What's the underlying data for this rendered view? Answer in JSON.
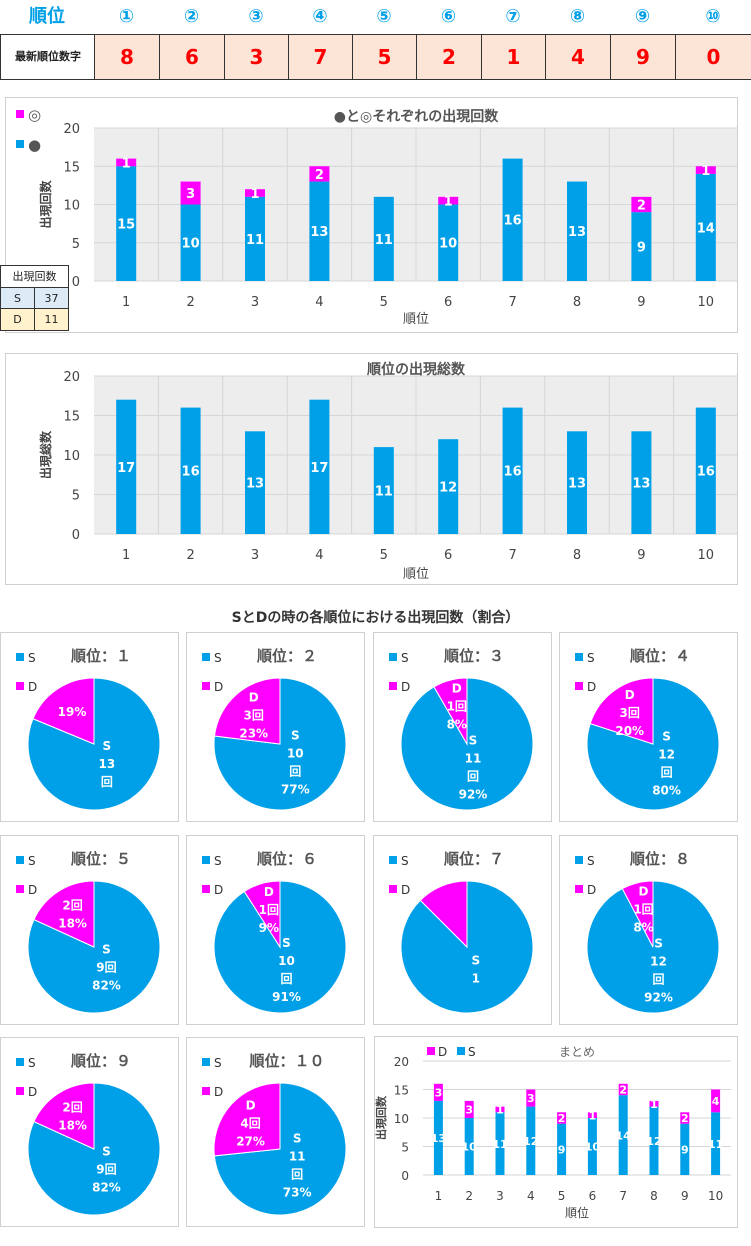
{
  "header": {
    "rank_label": "順位",
    "positions": [
      "①",
      "②",
      "③",
      "④",
      "⑤",
      "⑥",
      "⑦",
      "⑧",
      "⑨",
      "⑩"
    ]
  },
  "latest_row": {
    "label": "最新順位数字",
    "digits": [
      "8",
      "6",
      "3",
      "7",
      "5",
      "2",
      "1",
      "4",
      "9",
      "0"
    ]
  },
  "counts_table": {
    "title": "出現回数",
    "rows": [
      {
        "key": "S",
        "value": "37"
      },
      {
        "key": "D",
        "value": "11"
      }
    ]
  },
  "pie_section_title": "SとDの時の各順位における出現回数（割合）",
  "colors": {
    "S": "#00A0E8",
    "D": "#FF00FF",
    "accent": "#00A0E8",
    "red": "#FF0000"
  },
  "chart_data": [
    {
      "type": "bar",
      "title": "●と◎それぞれの出現回数",
      "xlabel": "順位",
      "ylabel": "出現回数",
      "ylim": [
        0,
        20
      ],
      "yticks": [
        "0",
        "5",
        "10",
        "15",
        "20"
      ],
      "categories": [
        "1",
        "2",
        "3",
        "4",
        "5",
        "6",
        "7",
        "8",
        "9",
        "10"
      ],
      "stacked": true,
      "legend": "top-left",
      "series": [
        {
          "name": "●",
          "color": "#00A0E8",
          "values": [
            15,
            10,
            11,
            13,
            11,
            10,
            16,
            13,
            9,
            14
          ]
        },
        {
          "name": "◎",
          "color": "#FF00FF",
          "values": [
            1,
            3,
            1,
            2,
            0,
            1,
            0,
            0,
            2,
            1
          ]
        }
      ]
    },
    {
      "type": "bar",
      "title": "順位の出現総数",
      "xlabel": "順位",
      "ylabel": "出現総数",
      "ylim": [
        0,
        20
      ],
      "yticks": [
        "0",
        "5",
        "10",
        "15",
        "20"
      ],
      "categories": [
        "1",
        "2",
        "3",
        "4",
        "5",
        "6",
        "7",
        "8",
        "9",
        "10"
      ],
      "series": [
        {
          "color": "#00A0E8",
          "values": [
            17,
            16,
            13,
            17,
            11,
            12,
            16,
            13,
            13,
            16
          ]
        }
      ]
    },
    {
      "type": "pie",
      "title": "順位：１",
      "legend": [
        "S",
        "D"
      ],
      "slices": [
        {
          "name": "S",
          "value": 13,
          "labels": [
            "S",
            "13",
            "回"
          ]
        },
        {
          "name": "D",
          "value": 3,
          "labels": [
            "19%"
          ]
        }
      ]
    },
    {
      "type": "pie",
      "title": "順位：２",
      "legend": [
        "S",
        "D"
      ],
      "slices": [
        {
          "name": "S",
          "value": 10,
          "labels": [
            "S",
            "10",
            "回",
            "77%"
          ]
        },
        {
          "name": "D",
          "value": 3,
          "labels": [
            "D",
            "3回",
            "23%"
          ]
        }
      ]
    },
    {
      "type": "pie",
      "title": "順位：３",
      "legend": [
        "S",
        "D"
      ],
      "slices": [
        {
          "name": "S",
          "value": 11,
          "labels": [
            "S",
            "11",
            "回",
            "92%"
          ]
        },
        {
          "name": "D",
          "value": 1,
          "labels": [
            "D",
            "1回",
            "8%"
          ]
        }
      ]
    },
    {
      "type": "pie",
      "title": "順位：４",
      "legend": [
        "S",
        "D"
      ],
      "slices": [
        {
          "name": "S",
          "value": 12,
          "labels": [
            "S",
            "12",
            "回",
            "80%"
          ]
        },
        {
          "name": "D",
          "value": 3,
          "labels": [
            "D",
            "3回",
            "20%"
          ]
        }
      ]
    },
    {
      "type": "pie",
      "title": "順位：５",
      "legend": [
        "S",
        "D"
      ],
      "slices": [
        {
          "name": "S",
          "value": 9,
          "labels": [
            "S",
            "9回",
            "82%"
          ]
        },
        {
          "name": "D",
          "value": 2,
          "labels": [
            "2回",
            "18%"
          ]
        }
      ]
    },
    {
      "type": "pie",
      "title": "順位：６",
      "legend": [
        "S",
        "D"
      ],
      "slices": [
        {
          "name": "S",
          "value": 10,
          "labels": [
            "S",
            "10",
            "回",
            "91%"
          ]
        },
        {
          "name": "D",
          "value": 1,
          "labels": [
            "D",
            "1回",
            "9%"
          ]
        }
      ]
    },
    {
      "type": "pie",
      "title": "順位：７",
      "legend": [
        "S",
        "D"
      ],
      "slices": [
        {
          "name": "S",
          "value": 14,
          "labels": [
            "S",
            "1"
          ]
        },
        {
          "name": "D",
          "value": 2,
          "labels": []
        }
      ]
    },
    {
      "type": "pie",
      "title": "順位：８",
      "legend": [
        "S",
        "D"
      ],
      "slices": [
        {
          "name": "S",
          "value": 12,
          "labels": [
            "S",
            "12",
            "回",
            "92%"
          ]
        },
        {
          "name": "D",
          "value": 1,
          "labels": [
            "D",
            "1回",
            "8%"
          ]
        }
      ]
    },
    {
      "type": "pie",
      "title": "順位：９",
      "legend": [
        "S",
        "D"
      ],
      "slices": [
        {
          "name": "S",
          "value": 9,
          "labels": [
            "S",
            "9回",
            "82%"
          ]
        },
        {
          "name": "D",
          "value": 2,
          "labels": [
            "2回",
            "18%"
          ]
        }
      ]
    },
    {
      "type": "pie",
      "title": "順位：１０",
      "legend": [
        "S",
        "D"
      ],
      "slices": [
        {
          "name": "S",
          "value": 11,
          "labels": [
            "S",
            "11",
            "回",
            "73%"
          ]
        },
        {
          "name": "D",
          "value": 4,
          "labels": [
            "D",
            "4回",
            "27%"
          ]
        }
      ]
    },
    {
      "type": "bar",
      "title": "まとめ",
      "xlabel": "順位",
      "ylabel": "出現回数",
      "ylim": [
        0,
        20
      ],
      "yticks": [
        "0",
        "5",
        "10",
        "15",
        "20"
      ],
      "categories": [
        "1",
        "2",
        "3",
        "4",
        "5",
        "6",
        "7",
        "8",
        "9",
        "10"
      ],
      "stacked": true,
      "legend": "top-left",
      "series": [
        {
          "name": "S",
          "color": "#00A0E8",
          "values": [
            13,
            10,
            11,
            12,
            9,
            10,
            14,
            12,
            9,
            11
          ]
        },
        {
          "name": "D",
          "color": "#FF00FF",
          "values": [
            3,
            3,
            1,
            3,
            2,
            1,
            2,
            1,
            2,
            4
          ]
        }
      ]
    }
  ]
}
